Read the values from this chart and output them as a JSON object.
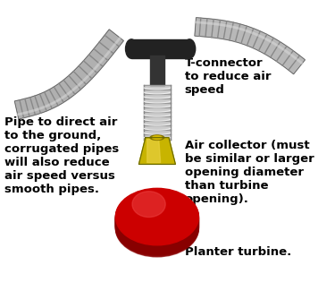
{
  "bg_color": "#ffffff",
  "title": "",
  "left_text": "Pipe to direct air\nto the ground,\ncorrugated pipes\nwill also reduce\nair speed versus\nsmooth pipes.",
  "right_top_text": "T-connector\nto reduce air\nspeed",
  "right_mid_text": "Air collector (must\nbe similar or larger\nopening diameter\nthan turbine\nopening).",
  "right_bot_text": "Planter turbine.",
  "t_connector_color": "#222222",
  "corrugated_pipe_color": "#aaaaaa",
  "corrugated_pipe_dark": "#666666",
  "spring_color": "#cccccc",
  "spring_dark": "#888888",
  "funnel_color": "#cccc00",
  "funnel_dark": "#888800",
  "funnel_inner": "#ffff44",
  "disk_color": "#cc0000",
  "disk_dark": "#880000",
  "disk_edge": "#440000",
  "text_color": "#000000",
  "text_fontsize": 9.5
}
